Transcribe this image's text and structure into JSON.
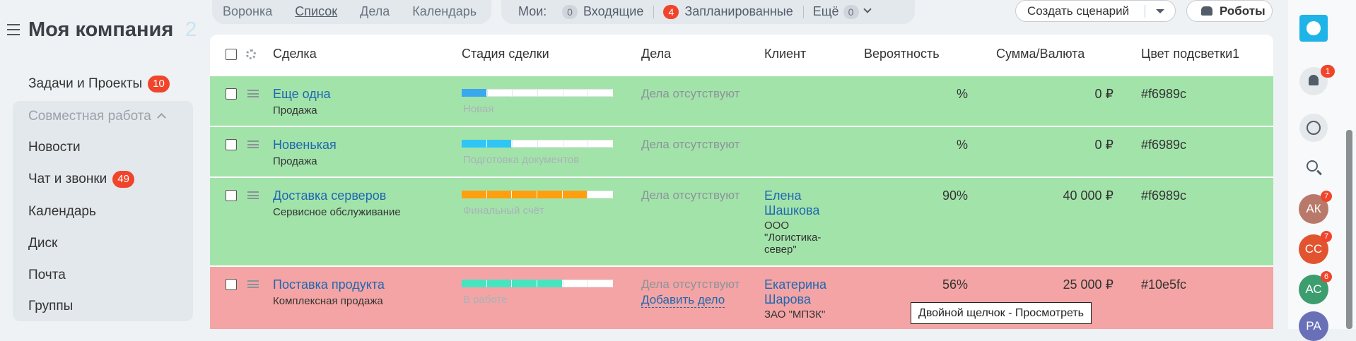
{
  "sidebar": {
    "title": "Моя компания",
    "title_suffix": "2",
    "items": [
      {
        "label": "Задачи и Проекты",
        "badge": 10
      },
      {
        "label": "Совместная работа",
        "group": true
      },
      {
        "label": "Новости"
      },
      {
        "label": "Чат и звонки",
        "badge": 49
      },
      {
        "label": "Календарь"
      },
      {
        "label": "Диск"
      },
      {
        "label": "Почта"
      },
      {
        "label": "Группы"
      }
    ]
  },
  "toolbar": {
    "views": [
      "Воронка",
      "Список",
      "Дела",
      "Календарь"
    ],
    "active_view": 1,
    "filter_label": "Мои:",
    "filters": [
      {
        "count": 0,
        "label": "Входящие"
      },
      {
        "count": 4,
        "label": "Запланированные",
        "highlight": true
      },
      {
        "label": "Ещё",
        "count": 0
      }
    ],
    "buttons": [
      "Создать сценарий",
      "Роботы"
    ]
  },
  "table": {
    "columns": [
      "Сделка",
      "Стадия сделки",
      "Дела",
      "Клиент",
      "Вероятность",
      "Сумма/Валюта",
      "Цвет подсветки1"
    ],
    "rows": [
      {
        "title": "Еще одна",
        "type": "Продажа",
        "stage": "Новая",
        "stage_color": "#39a8ef",
        "stage_filled": 1,
        "stage_total": 6,
        "tasks": "Дела отсутствуют",
        "probability": "%",
        "amount": "0 ₽",
        "highlight": "#f6989c",
        "row_color": "#a2e3aa"
      },
      {
        "title": "Новенькая",
        "type": "Продажа",
        "stage": "Подготовка документов",
        "stage_color": "#2fc6f6",
        "stage_filled": 2,
        "stage_total": 6,
        "tasks": "Дела отсутствуют",
        "probability": "%",
        "amount": "0 ₽",
        "highlight": "#f6989c",
        "row_color": "#a2e3aa"
      },
      {
        "title": "Доставка серверов",
        "type": "Сервисное обслуживание",
        "stage": "Финальный счёт",
        "stage_color": "#ff9f0f",
        "stage_filled": 5,
        "stage_total": 6,
        "tasks": "Дела отсутствуют",
        "client_name": "Елена Шашкова",
        "client_company": "ООО \"Логистика-север\"",
        "probability": "90%",
        "amount": "40 000 ₽",
        "highlight": "#f6989c",
        "row_color": "#a2e3aa"
      },
      {
        "title": "Поставка продукта",
        "type": "Комплексная продажа",
        "stage": "В работе",
        "stage_color": "#47e4c2",
        "stage_filled": 4,
        "stage_total": 6,
        "tasks": "Дела отсутствуют",
        "add_task": "Добавить дело",
        "client_name": "Екатерина Шарова",
        "client_company": "ЗАО \"МПЗК\"",
        "probability": "56%",
        "amount": "25 000 ₽",
        "highlight": "#10e5fc",
        "row_color": "#f4a4a4"
      }
    ]
  },
  "tooltip": "Двойной щелчок - Просмотреть",
  "rightbar": {
    "notifications": 1,
    "avatars": [
      {
        "initials": "АК",
        "badge": 7,
        "color": "#b9796a"
      },
      {
        "initials": "СС",
        "badge": 7,
        "color": "#e2532f"
      },
      {
        "initials": "АС",
        "badge": 6,
        "color": "#3c9d6e"
      },
      {
        "initials": "РА",
        "color": "#6a70b8"
      }
    ]
  }
}
